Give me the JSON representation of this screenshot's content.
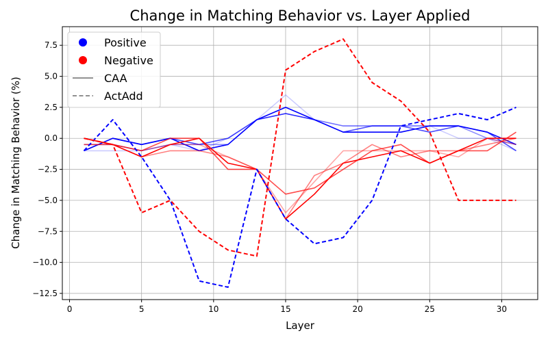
{
  "chart_data": {
    "type": "line",
    "title": "Change in Matching Behavior vs. Layer Applied",
    "xlabel": "Layer",
    "ylabel": "Change in Matching Behavior (%)",
    "xlim": [
      -0.5,
      32.5
    ],
    "ylim": [
      -13.0,
      9.0
    ],
    "xticks": [
      0,
      5,
      10,
      15,
      20,
      25,
      30
    ],
    "yticks": [
      -12.5,
      -10.0,
      -7.5,
      -5.0,
      -2.5,
      0.0,
      2.5,
      5.0,
      7.5
    ],
    "xtick_labels": [
      "0",
      "5",
      "10",
      "15",
      "20",
      "25",
      "30"
    ],
    "ytick_labels": [
      "−12.5",
      "−10.0",
      "−7.5",
      "−5.0",
      "−2.5",
      "0.0",
      "2.5",
      "5.0",
      "7.5"
    ],
    "grid": true,
    "legend": {
      "placement": "top-left",
      "entries": [
        {
          "label": "Positive",
          "kind": "marker",
          "color": "#0000ff"
        },
        {
          "label": "Negative",
          "kind": "marker",
          "color": "#ff0000"
        },
        {
          "label": "CAA",
          "kind": "solid",
          "color": "#808080"
        },
        {
          "label": "ActAdd",
          "kind": "dashed",
          "color": "#808080"
        }
      ]
    },
    "x": [
      1,
      3,
      5,
      7,
      9,
      11,
      13,
      15,
      17,
      19,
      21,
      23,
      25,
      27,
      29,
      31
    ],
    "series": [
      {
        "group": "Positive",
        "method": "CAA",
        "color": "#0000ff",
        "opacity": 0.2,
        "values": [
          -1,
          -1,
          -1,
          -0.5,
          -1,
          0,
          1.5,
          3.5,
          1.5,
          1,
          1,
          1,
          1,
          0,
          0,
          -1
        ]
      },
      {
        "group": "Positive",
        "method": "CAA",
        "color": "#0000ff",
        "opacity": 0.45,
        "values": [
          -0.5,
          -0.5,
          -1,
          -0.5,
          -0.5,
          -0.5,
          1.5,
          2,
          1.5,
          1,
          1,
          1,
          1,
          1,
          0,
          -0.5
        ]
      },
      {
        "group": "Positive",
        "method": "CAA",
        "color": "#0000ff",
        "opacity": 0.7,
        "values": [
          -1,
          0,
          -0.5,
          0,
          -0.5,
          0,
          1.5,
          2,
          1.5,
          0.5,
          1,
          1,
          0.5,
          1,
          0.5,
          -1
        ]
      },
      {
        "group": "Positive",
        "method": "CAA",
        "color": "#0000ff",
        "opacity": 1.0,
        "values": [
          -1,
          0,
          -0.5,
          0,
          -1,
          -0.5,
          1.5,
          2.5,
          1.5,
          0.5,
          0.5,
          0.5,
          1,
          1,
          0.5,
          -0.5
        ]
      },
      {
        "group": "Negative",
        "method": "CAA",
        "color": "#ff0000",
        "opacity": 0.35,
        "values": [
          -0.5,
          -0.5,
          -1,
          -0.5,
          -0.5,
          -1.5,
          -2.5,
          -6,
          -3.5,
          -1,
          -1,
          -1,
          -1,
          -1.5,
          0,
          -0.5
        ]
      },
      {
        "group": "Negative",
        "method": "CAA",
        "color": "#ff0000",
        "opacity": 0.5,
        "values": [
          -0.5,
          -0.5,
          -1.5,
          -1,
          -1,
          -1.5,
          -2.5,
          -6.5,
          -3,
          -2,
          -0.5,
          -1.5,
          -1,
          -1,
          -0.5,
          0
        ]
      },
      {
        "group": "Negative",
        "method": "CAA",
        "color": "#ff0000",
        "opacity": 0.7,
        "values": [
          0,
          -0.5,
          -1,
          0,
          0,
          -2.5,
          -2.5,
          -4.5,
          -4,
          -2.5,
          -1,
          -0.5,
          -2,
          -1,
          -1,
          0.5
        ]
      },
      {
        "group": "Negative",
        "method": "CAA",
        "color": "#ff0000",
        "opacity": 1.0,
        "values": [
          0,
          -0.5,
          -1.5,
          -0.5,
          0,
          -2,
          -2.5,
          -6.5,
          -4.5,
          -2,
          -1.5,
          -1,
          -2,
          -1,
          0,
          0
        ]
      },
      {
        "group": "Positive",
        "method": "ActAdd",
        "color": "#0000ff",
        "opacity": 1.0,
        "values": [
          -1,
          1.5,
          -1.5,
          -5,
          -11.5,
          -12,
          -2.5,
          -6.5,
          -8.5,
          -8,
          -5,
          1,
          1.5,
          2,
          1.5,
          2.5
        ]
      },
      {
        "group": "Negative",
        "method": "ActAdd",
        "color": "#ff0000",
        "opacity": 1.0,
        "values": [
          0,
          -0.5,
          -6,
          -5,
          -7.5,
          -9,
          -9.5,
          5.5,
          7,
          8,
          4.5,
          3,
          0.5,
          -5,
          -5,
          -5
        ]
      }
    ]
  }
}
